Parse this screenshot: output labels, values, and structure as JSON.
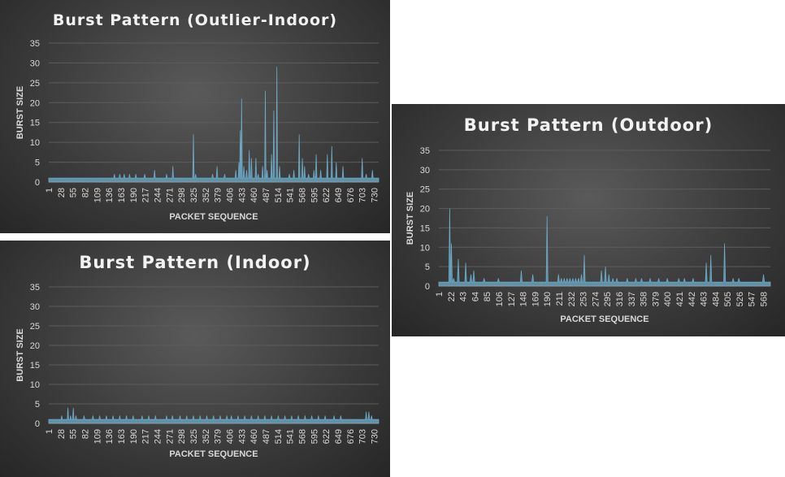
{
  "chart_data": [
    {
      "panel": "p1",
      "type": "area",
      "title": "Burst Pattern (Outlier-Indoor)",
      "xlabel": "PACKET SEQUENCE",
      "ylabel": "BURST SIZE",
      "ylim": [
        0,
        35
      ],
      "yticks": [
        "0",
        "5",
        "10",
        "15",
        "20",
        "25",
        "30",
        "35"
      ],
      "xlim": [
        1,
        740
      ],
      "xticks": [
        "1",
        "28",
        "55",
        "82",
        "109",
        "136",
        "163",
        "190",
        "217",
        "244",
        "271",
        "298",
        "325",
        "352",
        "379",
        "406",
        "433",
        "460",
        "487",
        "514",
        "541",
        "568",
        "595",
        "622",
        "649",
        "676",
        "703",
        "730"
      ],
      "baseline": 1,
      "spikes": [
        [
          148,
          2
        ],
        [
          160,
          2
        ],
        [
          170,
          2
        ],
        [
          182,
          2
        ],
        [
          196,
          2
        ],
        [
          216,
          2
        ],
        [
          238,
          3
        ],
        [
          265,
          2
        ],
        [
          279,
          4
        ],
        [
          325,
          12
        ],
        [
          330,
          2
        ],
        [
          368,
          2
        ],
        [
          378,
          4
        ],
        [
          395,
          2
        ],
        [
          420,
          3
        ],
        [
          427,
          5
        ],
        [
          430,
          13
        ],
        [
          433,
          21
        ],
        [
          438,
          4
        ],
        [
          444,
          3
        ],
        [
          450,
          8
        ],
        [
          455,
          6
        ],
        [
          465,
          6
        ],
        [
          470,
          2
        ],
        [
          480,
          4
        ],
        [
          486,
          23
        ],
        [
          490,
          3
        ],
        [
          500,
          7
        ],
        [
          505,
          18
        ],
        [
          512,
          29
        ],
        [
          518,
          4
        ],
        [
          540,
          2
        ],
        [
          550,
          3
        ],
        [
          562,
          12
        ],
        [
          569,
          6
        ],
        [
          574,
          4
        ],
        [
          583,
          2
        ],
        [
          595,
          3
        ],
        [
          600,
          7
        ],
        [
          610,
          3
        ],
        [
          625,
          7
        ],
        [
          635,
          9
        ],
        [
          645,
          5
        ],
        [
          660,
          4
        ],
        [
          703,
          6
        ],
        [
          712,
          2
        ],
        [
          726,
          3
        ]
      ]
    },
    {
      "panel": "p2",
      "type": "area",
      "title": "Burst Pattern (Indoor)",
      "xlabel": "PACKET SEQUENCE",
      "ylabel": "BURST SIZE",
      "ylim": [
        0,
        35
      ],
      "yticks": [
        "0",
        "5",
        "10",
        "15",
        "20",
        "25",
        "30",
        "35"
      ],
      "xlim": [
        1,
        740
      ],
      "xticks": [
        "1",
        "28",
        "55",
        "82",
        "109",
        "136",
        "163",
        "190",
        "217",
        "244",
        "271",
        "298",
        "325",
        "352",
        "379",
        "406",
        "433",
        "460",
        "487",
        "514",
        "541",
        "568",
        "595",
        "622",
        "649",
        "676",
        "703",
        "730"
      ],
      "baseline": 1,
      "spikes": [
        [
          30,
          2
        ],
        [
          44,
          4
        ],
        [
          50,
          2
        ],
        [
          56,
          4
        ],
        [
          62,
          2
        ],
        [
          80,
          2
        ],
        [
          100,
          2
        ],
        [
          115,
          2
        ],
        [
          130,
          2
        ],
        [
          145,
          2
        ],
        [
          160,
          2
        ],
        [
          175,
          2
        ],
        [
          190,
          2
        ],
        [
          210,
          2
        ],
        [
          225,
          2
        ],
        [
          240,
          2
        ],
        [
          265,
          2
        ],
        [
          278,
          2
        ],
        [
          295,
          2
        ],
        [
          310,
          2
        ],
        [
          325,
          2
        ],
        [
          340,
          2
        ],
        [
          355,
          2
        ],
        [
          370,
          2
        ],
        [
          385,
          2
        ],
        [
          400,
          2
        ],
        [
          410,
          2
        ],
        [
          425,
          2
        ],
        [
          440,
          2
        ],
        [
          455,
          2
        ],
        [
          470,
          2
        ],
        [
          485,
          2
        ],
        [
          500,
          2
        ],
        [
          515,
          2
        ],
        [
          530,
          2
        ],
        [
          545,
          2
        ],
        [
          560,
          2
        ],
        [
          575,
          2
        ],
        [
          590,
          2
        ],
        [
          605,
          2
        ],
        [
          620,
          2
        ],
        [
          640,
          2
        ],
        [
          655,
          2
        ],
        [
          712,
          3
        ],
        [
          718,
          3
        ],
        [
          724,
          2
        ]
      ]
    },
    {
      "panel": "p3",
      "type": "area",
      "title": "Burst Pattern (Outdoor)",
      "xlabel": "PACKET SEQUENCE",
      "ylabel": "BURST SIZE",
      "ylim": [
        0,
        35
      ],
      "yticks": [
        "0",
        "5",
        "10",
        "15",
        "20",
        "25",
        "30",
        "35"
      ],
      "xlim": [
        1,
        580
      ],
      "xticks": [
        "1",
        "22",
        "43",
        "64",
        "85",
        "106",
        "127",
        "148",
        "169",
        "190",
        "211",
        "232",
        "253",
        "274",
        "295",
        "316",
        "337",
        "358",
        "379",
        "400",
        "421",
        "442",
        "463",
        "484",
        "505",
        "526",
        "547",
        "568"
      ],
      "baseline": 1,
      "spikes": [
        [
          20,
          20
        ],
        [
          23,
          11
        ],
        [
          27,
          2
        ],
        [
          35,
          7
        ],
        [
          48,
          6
        ],
        [
          57,
          3
        ],
        [
          62,
          4
        ],
        [
          80,
          2
        ],
        [
          105,
          2
        ],
        [
          145,
          4
        ],
        [
          165,
          3
        ],
        [
          190,
          18
        ],
        [
          210,
          3
        ],
        [
          215,
          2
        ],
        [
          220,
          2
        ],
        [
          225,
          2
        ],
        [
          230,
          2
        ],
        [
          235,
          2
        ],
        [
          240,
          2
        ],
        [
          245,
          2
        ],
        [
          250,
          3
        ],
        [
          255,
          8
        ],
        [
          285,
          4
        ],
        [
          292,
          5
        ],
        [
          298,
          3
        ],
        [
          305,
          2
        ],
        [
          312,
          2
        ],
        [
          330,
          2
        ],
        [
          345,
          2
        ],
        [
          355,
          2
        ],
        [
          370,
          2
        ],
        [
          385,
          2
        ],
        [
          400,
          2
        ],
        [
          420,
          2
        ],
        [
          430,
          2
        ],
        [
          445,
          2
        ],
        [
          468,
          6
        ],
        [
          476,
          8
        ],
        [
          500,
          11
        ],
        [
          515,
          2
        ],
        [
          525,
          2
        ],
        [
          568,
          3
        ]
      ]
    }
  ]
}
